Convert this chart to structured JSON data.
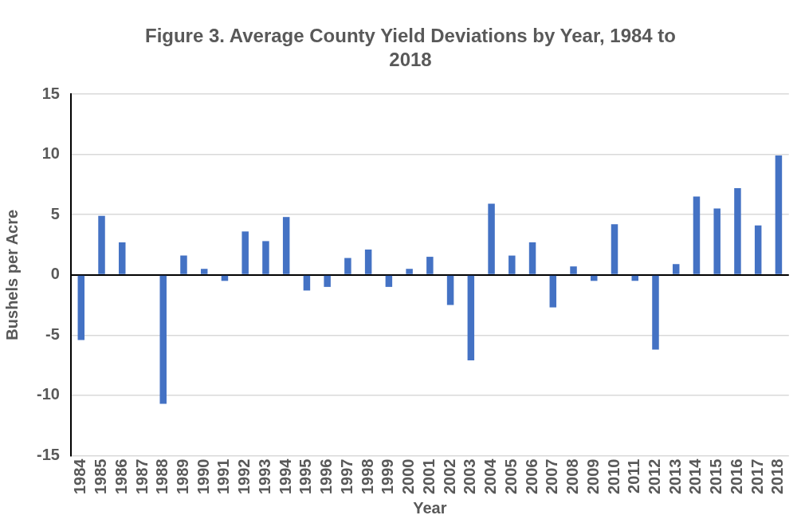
{
  "chart_data": {
    "type": "bar",
    "title": "Figure 3.  Average County Yield Deviations by Year, 1984 to 2018",
    "xlabel": "Year",
    "ylabel": "Bushels per Acre",
    "categories": [
      "1984",
      "1985",
      "1986",
      "1987",
      "1988",
      "1989",
      "1990",
      "1991",
      "1992",
      "1993",
      "1994",
      "1995",
      "1996",
      "1997",
      "1998",
      "1999",
      "2000",
      "2001",
      "2002",
      "2003",
      "2004",
      "2005",
      "2006",
      "2007",
      "2008",
      "2009",
      "2010",
      "2011",
      "2012",
      "2013",
      "2014",
      "2015",
      "2016",
      "2017",
      "2018"
    ],
    "values": [
      -5.4,
      4.9,
      2.7,
      0,
      -10.7,
      1.6,
      0.5,
      -0.5,
      3.6,
      2.8,
      4.8,
      -1.3,
      -1.0,
      1.4,
      2.1,
      -1.0,
      0.5,
      1.5,
      -2.5,
      -7.1,
      5.9,
      1.6,
      2.7,
      -2.7,
      0.7,
      -0.5,
      4.2,
      -0.5,
      -6.2,
      0.9,
      6.5,
      5.5,
      7.2,
      4.1,
      9.9
    ],
    "color": "#4472c4",
    "ylim": [
      -15,
      15
    ],
    "yticks": [
      -15,
      -10,
      -5,
      0,
      5,
      10,
      15
    ],
    "grid": "y",
    "legend": false
  }
}
